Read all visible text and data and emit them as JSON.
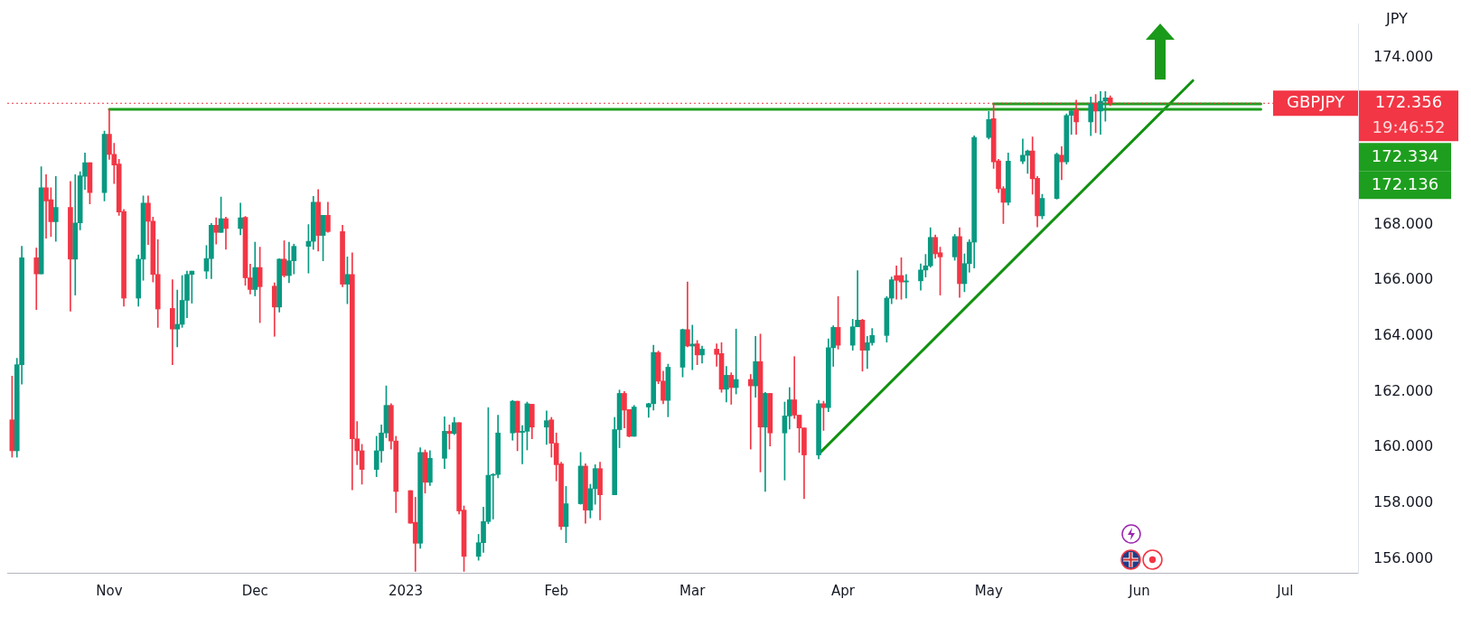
{
  "chart_data": {
    "type": "candlestick",
    "ylabel": "JPY",
    "annotations": [
      "GBPJPY",
      "19:46:52"
    ],
    "x": [
      "2022-10-12",
      "2022-10-13",
      "2022-10-14",
      "2022-10-17",
      "2022-10-18",
      "2022-10-19",
      "2022-10-20",
      "2022-10-21",
      "2022-10-24",
      "2022-10-25",
      "2022-10-26",
      "2022-10-27",
      "2022-10-28",
      "2022-10-31",
      "2022-11-01",
      "2022-11-02",
      "2022-11-03",
      "2022-11-04",
      "2022-11-07",
      "2022-11-08",
      "2022-11-09",
      "2022-11-10",
      "2022-11-11",
      "2022-11-14",
      "2022-11-15",
      "2022-11-16",
      "2022-11-17",
      "2022-11-18",
      "2022-11-21",
      "2022-11-22",
      "2022-11-23",
      "2022-11-24",
      "2022-11-25",
      "2022-11-28",
      "2022-11-29",
      "2022-11-30",
      "2022-12-01",
      "2022-12-02",
      "2022-12-05",
      "2022-12-06",
      "2022-12-07",
      "2022-12-08",
      "2022-12-09",
      "2022-12-12",
      "2022-12-13",
      "2022-12-14",
      "2022-12-15",
      "2022-12-16",
      "2022-12-19",
      "2022-12-20",
      "2022-12-21",
      "2022-12-22",
      "2022-12-23",
      "2022-12-26",
      "2022-12-27",
      "2022-12-28",
      "2022-12-29",
      "2022-12-30",
      "2023-01-02",
      "2023-01-03",
      "2023-01-04",
      "2023-01-05",
      "2023-01-06",
      "2023-01-09",
      "2023-01-10",
      "2023-01-11",
      "2023-01-12",
      "2023-01-13",
      "2023-01-16",
      "2023-01-17",
      "2023-01-18",
      "2023-01-19",
      "2023-01-20",
      "2023-01-23",
      "2023-01-24",
      "2023-01-25",
      "2023-01-26",
      "2023-01-27",
      "2023-01-30",
      "2023-01-31",
      "2023-02-01",
      "2023-02-02",
      "2023-02-03",
      "2023-02-06",
      "2023-02-07",
      "2023-02-08",
      "2023-02-09",
      "2023-02-10",
      "2023-02-13",
      "2023-02-14",
      "2023-02-15",
      "2023-02-16",
      "2023-02-17",
      "2023-02-20",
      "2023-02-21",
      "2023-02-22",
      "2023-02-23",
      "2023-02-24",
      "2023-02-27",
      "2023-02-28",
      "2023-03-01",
      "2023-03-02",
      "2023-03-03",
      "2023-03-06",
      "2023-03-07",
      "2023-03-08",
      "2023-03-09",
      "2023-03-10",
      "2023-03-13",
      "2023-03-14",
      "2023-03-15",
      "2023-03-16",
      "2023-03-17",
      "2023-03-20",
      "2023-03-21",
      "2023-03-22",
      "2023-03-23",
      "2023-03-24",
      "2023-03-27",
      "2023-03-28",
      "2023-03-29",
      "2023-03-30",
      "2023-03-31",
      "2023-04-03",
      "2023-04-04",
      "2023-04-05",
      "2023-04-06",
      "2023-04-07",
      "2023-04-10",
      "2023-04-11",
      "2023-04-12",
      "2023-04-13",
      "2023-04-14",
      "2023-04-17",
      "2023-04-18",
      "2023-04-19",
      "2023-04-20",
      "2023-04-21",
      "2023-04-24",
      "2023-04-25",
      "2023-04-26",
      "2023-04-27",
      "2023-04-28",
      "2023-05-01",
      "2023-05-02",
      "2023-05-03",
      "2023-05-04",
      "2023-05-05",
      "2023-05-08",
      "2023-05-09",
      "2023-05-10",
      "2023-05-11",
      "2023-05-12",
      "2023-05-15",
      "2023-05-16",
      "2023-05-17",
      "2023-05-18",
      "2023-05-19",
      "2023-05-22",
      "2023-05-23",
      "2023-05-24",
      "2023-05-25",
      "2023-05-26"
    ],
    "ohlc": [
      [
        160.99,
        162.56,
        159.65,
        159.88
      ],
      [
        159.88,
        163.2,
        159.65,
        162.97
      ],
      [
        162.97,
        167.22,
        162.27,
        166.81
      ],
      [
        166.81,
        167.16,
        164.95,
        166.23
      ],
      [
        166.23,
        170.08,
        166.23,
        169.32
      ],
      [
        169.32,
        169.79,
        167.51,
        168.85
      ],
      [
        168.89,
        169.32,
        167.57,
        168.1
      ],
      [
        168.1,
        169.73,
        167.4,
        168.62
      ],
      [
        168.62,
        169.55,
        164.89,
        166.76
      ],
      [
        166.76,
        169.79,
        165.47,
        168.06
      ],
      [
        168.06,
        169.9,
        167.81,
        169.75
      ],
      [
        169.73,
        170.57,
        169.26,
        170.22
      ],
      [
        170.22,
        170.22,
        168.74,
        169.15
      ],
      [
        169.15,
        171.36,
        168.85,
        171.24
      ],
      [
        171.24,
        172.14,
        170.34,
        170.52
      ],
      [
        170.52,
        170.92,
        169.47,
        170.14
      ],
      [
        170.17,
        170.34,
        168.33,
        168.45
      ],
      [
        168.47,
        168.54,
        165.07,
        165.36
      ],
      [
        165.36,
        166.91,
        165.07,
        166.76
      ],
      [
        166.76,
        169.03,
        166.0,
        168.77
      ],
      [
        168.77,
        169.03,
        167.28,
        168.12
      ],
      [
        168.12,
        168.27,
        165.94,
        166.21
      ],
      [
        166.21,
        167.46,
        164.31,
        164.97
      ],
      [
        164.99,
        166.02,
        162.97,
        164.25
      ],
      [
        164.25,
        165.65,
        163.61,
        164.42
      ],
      [
        164.42,
        166.17,
        164.31,
        165.28
      ],
      [
        165.28,
        166.33,
        164.66,
        166.21
      ],
      [
        166.21,
        166.33,
        165.18,
        166.33
      ],
      [
        166.33,
        167.25,
        166.06,
        166.78
      ],
      [
        166.78,
        168.04,
        166.06,
        167.98
      ],
      [
        167.98,
        168.24,
        167.3,
        167.72
      ],
      [
        167.72,
        168.99,
        167.72,
        168.21
      ],
      [
        168.21,
        168.27,
        167.11,
        167.86
      ],
      [
        167.86,
        168.77,
        167.63,
        168.24
      ],
      [
        168.26,
        168.29,
        165.82,
        166.09
      ],
      [
        166.09,
        166.58,
        165.51,
        165.67
      ],
      [
        165.67,
        167.37,
        165.44,
        166.46
      ],
      [
        166.46,
        167.19,
        164.48,
        165.77
      ],
      [
        165.79,
        165.91,
        163.99,
        165.04
      ],
      [
        165.04,
        166.78,
        164.86,
        166.76
      ],
      [
        166.76,
        167.42,
        166.12,
        166.17
      ],
      [
        166.17,
        167.37,
        165.91,
        166.7
      ],
      [
        166.7,
        167.3,
        166.23,
        167.22
      ],
      [
        167.22,
        168.0,
        166.26,
        167.4
      ],
      [
        167.4,
        169.01,
        167.11,
        168.8
      ],
      [
        168.8,
        169.26,
        167.05,
        167.61
      ],
      [
        167.61,
        168.33,
        166.7,
        168.33
      ],
      [
        168.33,
        168.8,
        167.72,
        167.75
      ],
      [
        167.75,
        167.98,
        165.77,
        165.86
      ],
      [
        165.86,
        166.84,
        165.16,
        166.21
      ],
      [
        166.21,
        166.99,
        158.48,
        160.31
      ],
      [
        160.31,
        160.93,
        159.38,
        159.88
      ],
      [
        159.88,
        160.11,
        158.68,
        159.21
      ],
      [
        159.21,
        160.4,
        158.95,
        159.88
      ],
      [
        159.88,
        160.81,
        159.47,
        160.52
      ],
      [
        160.52,
        162.21,
        160.35,
        161.51
      ],
      [
        161.51,
        161.57,
        159.94,
        160.23
      ],
      [
        160.23,
        160.4,
        157.66,
        158.42
      ],
      [
        158.45,
        158.45,
        157.28,
        157.28
      ],
      [
        157.31,
        158.21,
        155.55,
        156.56
      ],
      [
        156.56,
        159.99,
        156.38,
        159.82
      ],
      [
        159.82,
        159.91,
        158.36,
        158.75
      ],
      [
        158.75,
        159.88,
        158.63,
        159.61
      ],
      [
        159.61,
        161.1,
        159.24,
        160.58
      ],
      [
        160.58,
        160.81,
        159.94,
        160.5
      ],
      [
        160.5,
        161.08,
        160.46,
        160.89
      ],
      [
        160.89,
        160.89,
        157.61,
        157.72
      ],
      [
        157.75,
        157.9,
        155.55,
        156.09
      ],
      [
        156.09,
        156.88,
        155.95,
        156.58
      ],
      [
        156.58,
        157.86,
        156.23,
        157.34
      ],
      [
        157.34,
        161.43,
        157.26,
        159.0
      ],
      [
        159.0,
        159.06,
        157.43,
        159.03
      ],
      [
        159.03,
        161.16,
        158.91,
        160.52
      ],
      [
        160.52,
        161.69,
        160.26,
        161.66
      ],
      [
        161.66,
        161.66,
        159.88,
        160.54
      ],
      [
        160.54,
        160.78,
        159.41,
        160.58
      ],
      [
        160.58,
        161.63,
        159.91,
        161.57
      ],
      [
        161.55,
        161.55,
        160.31,
        160.73
      ],
      [
        160.73,
        161.31,
        160.11,
        160.96
      ],
      [
        160.99,
        161.08,
        159.65,
        160.15
      ],
      [
        160.15,
        160.52,
        158.8,
        159.38
      ],
      [
        159.41,
        159.47,
        157.05,
        157.16
      ],
      [
        157.16,
        158.6,
        156.58,
        157.98
      ],
      [
        157.98,
        159.82,
        157.96,
        159.33
      ],
      [
        159.33,
        159.41,
        157.28,
        157.75
      ],
      [
        157.75,
        158.68,
        157.47,
        158.52
      ],
      [
        158.52,
        159.38,
        157.96,
        159.24
      ],
      [
        159.24,
        159.47,
        157.4,
        158.3
      ],
      [
        158.3,
        161.08,
        158.3,
        160.64
      ],
      [
        160.64,
        162.06,
        159.99,
        161.94
      ],
      [
        161.94,
        162.01,
        160.7,
        161.34
      ],
      [
        161.36,
        161.36,
        160.38,
        160.4
      ],
      [
        160.4,
        161.51,
        160.4,
        161.45
      ],
      [
        161.45,
        161.59,
        161.08,
        161.57
      ],
      [
        161.57,
        163.67,
        161.34,
        163.41
      ],
      [
        163.41,
        163.46,
        162.29,
        162.38
      ],
      [
        162.38,
        162.74,
        161.57,
        161.69
      ],
      [
        161.69,
        162.99,
        161.1,
        162.88
      ],
      [
        162.88,
        164.25,
        162.53,
        164.23
      ],
      [
        164.23,
        165.94,
        163.61,
        163.64
      ],
      [
        163.64,
        164.39,
        162.79,
        163.71
      ],
      [
        163.72,
        163.84,
        162.97,
        163.32
      ],
      [
        163.32,
        163.64,
        163.03,
        163.53
      ],
      [
        163.53,
        163.72,
        162.91,
        163.34
      ],
      [
        163.37,
        163.76,
        161.98,
        162.09
      ],
      [
        162.09,
        162.91,
        161.63,
        162.59
      ],
      [
        162.59,
        162.68,
        161.55,
        162.15
      ],
      [
        162.15,
        164.25,
        161.92,
        162.44
      ],
      [
        162.44,
        162.62,
        159.94,
        162.21
      ],
      [
        162.21,
        163.99,
        161.8,
        163.08
      ],
      [
        163.08,
        164.07,
        159.12,
        160.73
      ],
      [
        160.73,
        161.98,
        158.42,
        161.94
      ],
      [
        161.94,
        161.94,
        160.05,
        160.52
      ],
      [
        160.52,
        161.63,
        158.83,
        161.13
      ],
      [
        161.13,
        162.15,
        160.66,
        161.71
      ],
      [
        161.71,
        163.26,
        161.04,
        161.16
      ],
      [
        161.16,
        161.16,
        159.82,
        160.7
      ],
      [
        160.7,
        160.7,
        158.16,
        159.73
      ],
      [
        159.73,
        161.69,
        159.59,
        161.57
      ],
      [
        161.57,
        161.66,
        160.61,
        161.43
      ],
      [
        161.43,
        163.9,
        161.28,
        163.58
      ],
      [
        163.58,
        164.37,
        162.91,
        164.31
      ],
      [
        164.31,
        165.42,
        163.53,
        163.67
      ],
      [
        163.67,
        164.6,
        163.49,
        164.33
      ],
      [
        164.33,
        166.35,
        164.33,
        164.57
      ],
      [
        164.57,
        164.6,
        162.74,
        163.49
      ],
      [
        163.49,
        163.99,
        162.83,
        163.76
      ],
      [
        163.76,
        164.27,
        163.67,
        164.02
      ],
      [
        164.02,
        165.42,
        163.78,
        165.36
      ],
      [
        165.36,
        166.12,
        165.16,
        166.02
      ],
      [
        166.17,
        166.52,
        165.32,
        166.0
      ],
      [
        166.17,
        166.81,
        165.32,
        165.94
      ],
      [
        165.94,
        166.21,
        165.36,
        165.98
      ],
      [
        165.98,
        166.59,
        165.65,
        166.37
      ],
      [
        166.37,
        166.93,
        166.12,
        166.52
      ],
      [
        166.52,
        167.89,
        166.47,
        167.54
      ],
      [
        167.54,
        167.63,
        166.79,
        166.95
      ],
      [
        166.99,
        167.19,
        165.47,
        166.84
      ],
      [
        166.84,
        167.65,
        166.72,
        167.57
      ],
      [
        167.57,
        167.89,
        165.39,
        165.88
      ],
      [
        165.88,
        166.95,
        165.59,
        166.6
      ],
      [
        166.6,
        167.46,
        166.29,
        167.37
      ],
      [
        167.37,
        171.19,
        166.44,
        171.13
      ],
      [
        171.13,
        172.06,
        171.07,
        171.77
      ],
      [
        171.8,
        172.33,
        170.02,
        170.25
      ],
      [
        170.29,
        170.34,
        169.15,
        169.29
      ],
      [
        169.29,
        169.36,
        168.04,
        168.8
      ],
      [
        168.8,
        170.57,
        168.7,
        170.28
      ],
      [
        170.28,
        171.07,
        170.19,
        170.49
      ],
      [
        170.49,
        170.68,
        169.84,
        170.64
      ],
      [
        170.64,
        171.15,
        169.09,
        169.64
      ],
      [
        169.66,
        169.73,
        167.92,
        168.31
      ],
      [
        168.31,
        169.09,
        168.21,
        168.94
      ],
      [
        168.94,
        170.57,
        168.91,
        170.52
      ],
      [
        170.49,
        170.8,
        169.61,
        170.25
      ],
      [
        170.25,
        171.97,
        170.17,
        171.92
      ],
      [
        171.92,
        172.12,
        171.24,
        172.08
      ],
      [
        172.12,
        172.47,
        171.24,
        171.69
      ],
      [
        171.69,
        172.58,
        171.19,
        172.35
      ],
      [
        172.35,
        172.67,
        171.3,
        172.08
      ],
      [
        172.08,
        172.78,
        171.24,
        172.43
      ],
      [
        172.43,
        172.78,
        171.71,
        172.55
      ],
      [
        172.55,
        172.62,
        172.27,
        172.356
      ]
    ],
    "colors": [
      "#f23645",
      "#089981",
      "#089981",
      "#f23645",
      "#089981",
      "#f23645",
      "#f23645",
      "#089981",
      "#f23645",
      "#089981",
      "#089981",
      "#089981",
      "#f23645",
      "#089981",
      "#f23645",
      "#f23645",
      "#f23645",
      "#f23645",
      "#089981",
      "#089981",
      "#f23645",
      "#f23645",
      "#f23645",
      "#f23645",
      "#089981",
      "#089981",
      "#089981",
      "#089981",
      "#089981",
      "#089981",
      "#f23645",
      "#089981",
      "#f23645",
      "#089981",
      "#f23645",
      "#f23645",
      "#089981",
      "#f23645",
      "#f23645",
      "#089981",
      "#f23645",
      "#089981",
      "#089981",
      "#089981",
      "#089981",
      "#f23645",
      "#089981",
      "#f23645",
      "#f23645",
      "#089981",
      "#f23645",
      "#f23645",
      "#f23645",
      "#089981",
      "#089981",
      "#089981",
      "#f23645",
      "#f23645",
      "#f23645",
      "#f23645",
      "#089981",
      "#f23645",
      "#089981",
      "#089981",
      "#f23645",
      "#089981",
      "#f23645",
      "#f23645",
      "#089981",
      "#089981",
      "#089981",
      "#089981",
      "#089981",
      "#089981",
      "#f23645",
      "#089981",
      "#089981",
      "#f23645",
      "#089981",
      "#f23645",
      "#f23645",
      "#f23645",
      "#089981",
      "#089981",
      "#f23645",
      "#089981",
      "#089981",
      "#f23645",
      "#089981",
      "#089981",
      "#f23645",
      "#f23645",
      "#089981",
      "#089981",
      "#089981",
      "#f23645",
      "#f23645",
      "#089981",
      "#089981",
      "#f23645",
      "#089981",
      "#f23645",
      "#089981",
      "#f23645",
      "#f23645",
      "#089981",
      "#f23645",
      "#089981",
      "#f23645",
      "#089981",
      "#f23645",
      "#089981",
      "#f23645",
      "#089981",
      "#089981",
      "#f23645",
      "#f23645",
      "#f23645",
      "#089981",
      "#f23645",
      "#089981",
      "#089981",
      "#f23645",
      "#089981",
      "#089981",
      "#f23645",
      "#089981",
      "#089981",
      "#089981",
      "#089981",
      "#f23645",
      "#f23645",
      "#089981",
      "#089981",
      "#089981",
      "#089981",
      "#f23645",
      "#f23645",
      "#089981",
      "#f23645",
      "#089981",
      "#089981",
      "#089981",
      "#089981",
      "#f23645",
      "#f23645",
      "#f23645",
      "#089981",
      "#089981",
      "#089981",
      "#f23645",
      "#f23645",
      "#089981",
      "#089981",
      "#f23645",
      "#089981",
      "#089981",
      "#f23645",
      "#089981",
      "#f23645",
      "#089981",
      "#089981",
      "#f23645"
    ],
    "series": [
      {
        "type": "line",
        "name": "172.334",
        "color": "#1e9e1e",
        "x": [
          "2023-05-02",
          "2023-06-26"
        ],
        "values": [
          172.334,
          172.334
        ]
      },
      {
        "type": "line",
        "name": "172.136",
        "color": "#1e9e1e",
        "x": [
          "2022-11-01",
          "2023-06-26"
        ],
        "values": [
          172.136,
          172.136
        ]
      },
      {
        "type": "line",
        "color": "#119211",
        "x": [
          "2023-03-27",
          "2023-06-12"
        ],
        "values": [
          159.76,
          173.17
        ]
      }
    ],
    "ref_lines": [
      {
        "axis": "y",
        "value": 172.356,
        "label": "172.356",
        "color": "#f23645",
        "line_style": "dotted"
      }
    ],
    "xlim": [
      "2022-10-11",
      "2023-07-16"
    ],
    "xticks": [
      {
        "value": "2022-11-01",
        "label": "Nov"
      },
      {
        "value": "2022-12-01",
        "label": "Dec"
      },
      {
        "value": "2023-01-01",
        "label": "2023"
      },
      {
        "value": "2023-02-01",
        "label": "Feb"
      },
      {
        "value": "2023-03-01",
        "label": "Mar"
      },
      {
        "value": "2023-04-01",
        "label": "Apr"
      },
      {
        "value": "2023-05-01",
        "label": "May"
      },
      {
        "value": "2023-06-01",
        "label": "Jun"
      },
      {
        "value": "2023-07-01",
        "label": "Jul"
      }
    ],
    "ylim": [
      155.5,
      175.2
    ],
    "yticks": [
      {
        "value": 156,
        "label": "156.000"
      },
      {
        "value": 158,
        "label": "158.000"
      },
      {
        "value": 160,
        "label": "160.000"
      },
      {
        "value": 162,
        "label": "162.000"
      },
      {
        "value": 164,
        "label": "164.000"
      },
      {
        "value": 166,
        "label": "166.000"
      },
      {
        "value": 168,
        "label": "168.000"
      },
      {
        "value": 174,
        "label": "174.000"
      }
    ],
    "grid": false,
    "legend": false
  }
}
